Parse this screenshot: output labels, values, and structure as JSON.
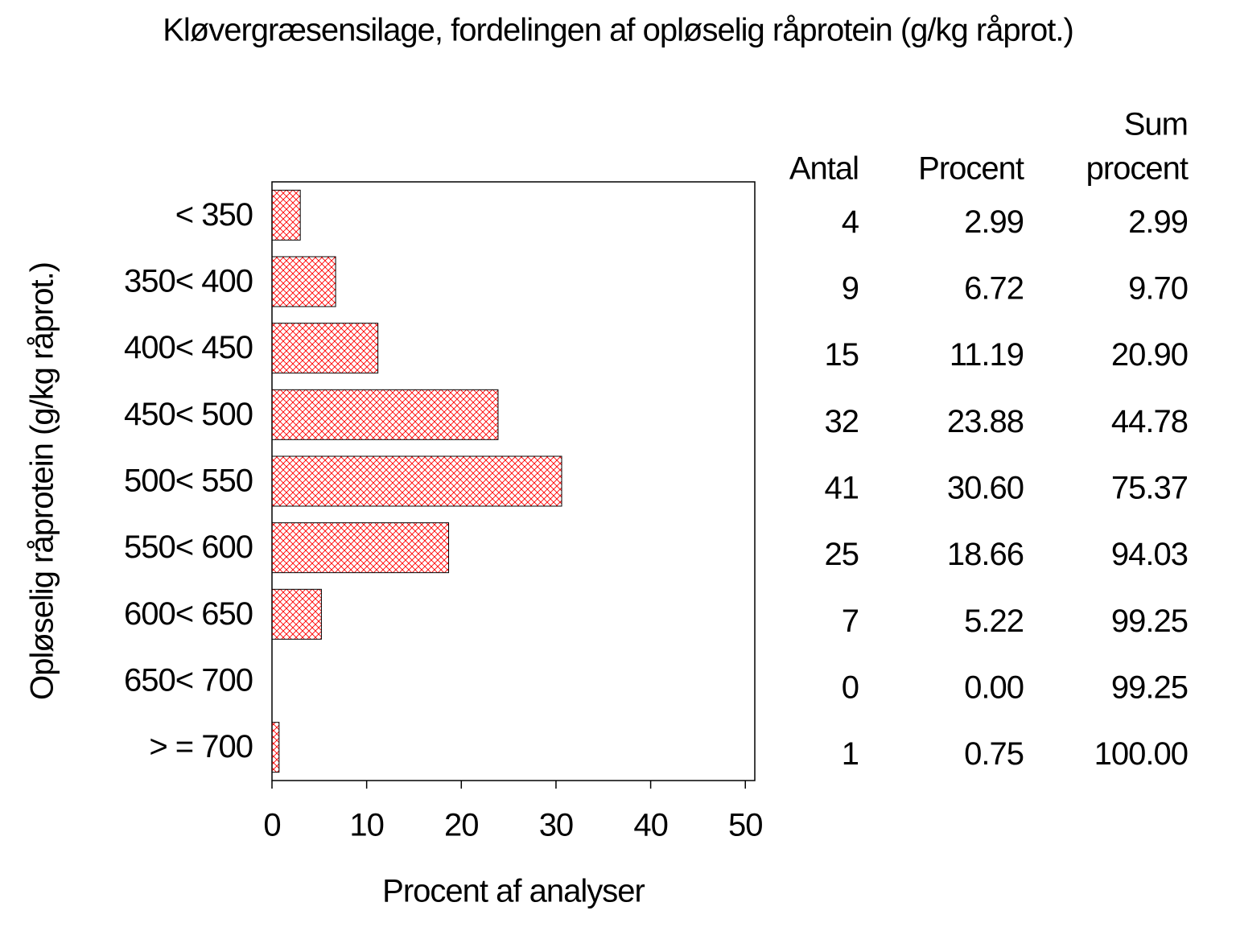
{
  "chart_data": {
    "type": "hbar",
    "title": "Kløvergræsensilage, fordelingen af opløselig råprotein (g/kg råprot.)",
    "xlabel": "Procent af analyser",
    "ylabel": "Opløselig råprotein (g/kg råprot.)",
    "categories": [
      "< 350",
      "350< 400",
      "400< 450",
      "450< 500",
      "500< 550",
      "550< 600",
      "600< 650",
      "650< 700",
      "> = 700"
    ],
    "values": [
      2.99,
      6.72,
      11.19,
      23.88,
      30.6,
      18.66,
      5.22,
      0,
      0.75
    ],
    "value_labels": [
      "2.99",
      "6.72",
      "11.19",
      "23.88",
      "30.60",
      "18.66",
      "5.22",
      "0.00",
      "0.75"
    ],
    "color": "#ff0000",
    "xlim": [
      0,
      51
    ],
    "xticks": [
      0,
      10,
      20,
      30,
      40,
      50
    ],
    "table": {
      "count_header": "Antal",
      "percent_header": "Procent",
      "cumulative_header": [
        "Sum",
        "procent"
      ],
      "counts": [
        4,
        9,
        15,
        32,
        41,
        25,
        7,
        0,
        1
      ],
      "cumulative": [
        "2.99",
        "9.70",
        "20.90",
        "44.78",
        "75.37",
        "94.03",
        "99.25",
        "99.25",
        "100.00"
      ]
    }
  }
}
